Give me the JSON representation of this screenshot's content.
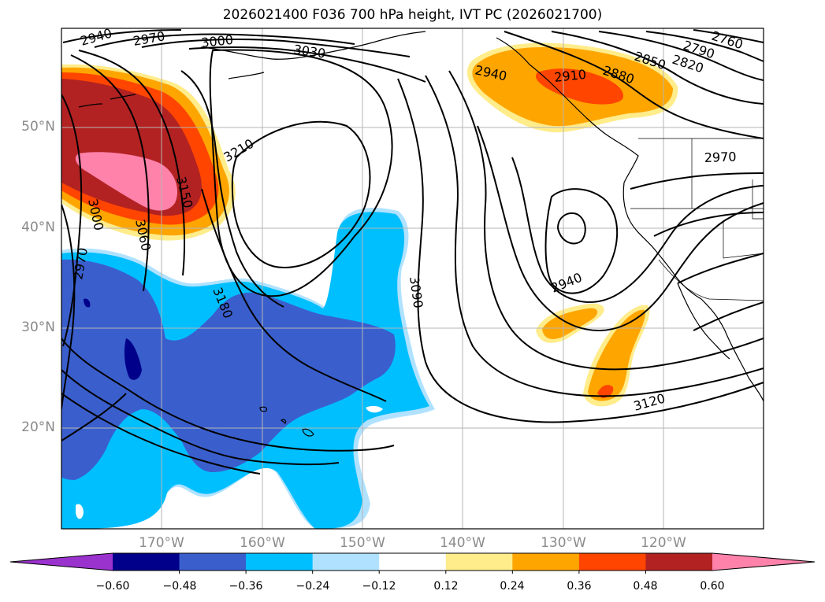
{
  "title": "2026021400 F036 700 hPa height, IVT PC (2026021700)",
  "lat_ticks": [
    "50°N",
    "40°N",
    "30°N",
    "20°N"
  ],
  "lon_ticks": [
    "170°W",
    "160°W",
    "150°W",
    "140°W",
    "130°W",
    "120°W"
  ],
  "colorbar": {
    "colors": [
      "#9a32cd",
      "#00008b",
      "#3a5fcd",
      "#00bfff",
      "#b0e2ff",
      "#ffffff",
      "#ffec8b",
      "#ffa500",
      "#ff4500",
      "#b22222",
      "#ff82ab"
    ],
    "tick_labels": [
      "−0.60",
      "−0.48",
      "−0.36",
      "−0.24",
      "−0.12",
      "0.12",
      "0.24",
      "0.36",
      "0.48",
      "0.60"
    ]
  },
  "contour_labels": [
    "2940",
    "2970",
    "3000",
    "3030",
    "2940",
    "2910",
    "2880",
    "2850",
    "2820",
    "2790",
    "2760",
    "3210",
    "3150",
    "3060",
    "3000",
    "2970",
    "3180",
    "3090",
    "2940",
    "2970",
    "3120"
  ]
}
